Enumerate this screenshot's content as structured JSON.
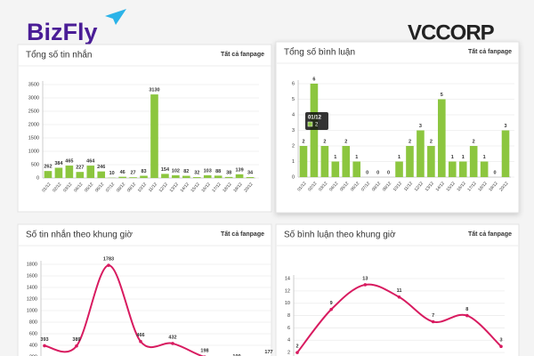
{
  "header": {
    "left_logo": "BizFly",
    "right_logo": "VCCORP"
  },
  "fanpage_filter": "Tất cả fanpage",
  "chart_data": [
    {
      "type": "bar",
      "title": "Tổng số tin nhắn",
      "color": "#8cc63f",
      "grid": true,
      "categories": [
        "01/12",
        "02/12",
        "03/12",
        "04/12",
        "05/12",
        "06/12",
        "07/12",
        "08/12",
        "09/12",
        "10/12",
        "11/12",
        "12/12",
        "13/12",
        "14/12",
        "15/12",
        "16/12",
        "17/12",
        "18/12",
        "19/12",
        "20/12"
      ],
      "values": [
        262,
        384,
        465,
        227,
        464,
        246,
        10,
        46,
        27,
        83,
        3130,
        154,
        102,
        82,
        32,
        103,
        88,
        38,
        139,
        34
      ],
      "ylim": [
        0,
        3500
      ],
      "yticks": [
        0,
        500,
        1000,
        1500,
        2000,
        2500,
        3000,
        3500
      ]
    },
    {
      "type": "bar",
      "title": "Tổng số bình luận",
      "color": "#8cc63f",
      "grid": true,
      "categories": [
        "01/12",
        "02/12",
        "03/12",
        "04/12",
        "05/12",
        "06/12",
        "07/12",
        "08/12",
        "09/12",
        "10/12",
        "11/12",
        "12/12",
        "13/12",
        "14/12",
        "15/12",
        "16/12",
        "17/12",
        "18/12",
        "19/12",
        "20/12"
      ],
      "values": [
        2,
        6,
        2,
        1,
        2,
        1,
        0,
        0,
        0,
        1,
        2,
        3,
        2,
        5,
        1,
        1,
        2,
        1,
        0,
        3
      ],
      "ylim": [
        0,
        6
      ],
      "yticks": [
        0,
        1,
        2,
        3,
        4,
        5,
        6
      ],
      "tooltip_index": 0
    },
    {
      "type": "line",
      "title": "Số tin nhắn theo khung giờ",
      "color": "#d81b60",
      "grid": true,
      "categories": [
        null,
        null,
        null,
        null,
        null,
        null,
        null,
        null
      ],
      "values": [
        393,
        389,
        1783,
        466,
        432,
        198,
        100,
        177
      ],
      "ylim": [
        0,
        1800
      ],
      "yticks": [
        0,
        200,
        400,
        600,
        800,
        1000,
        1200,
        1400,
        1600,
        1800
      ]
    },
    {
      "type": "line",
      "title": "Số bình luận theo khung giờ",
      "color": "#d81b60",
      "grid": true,
      "categories": [
        null,
        null,
        null,
        null,
        null,
        null,
        null
      ],
      "values": [
        2,
        9,
        13,
        11,
        7,
        8,
        3
      ],
      "ylim": [
        0,
        14
      ],
      "yticks": [
        0,
        2,
        4,
        6,
        8,
        10,
        12,
        14
      ]
    }
  ]
}
